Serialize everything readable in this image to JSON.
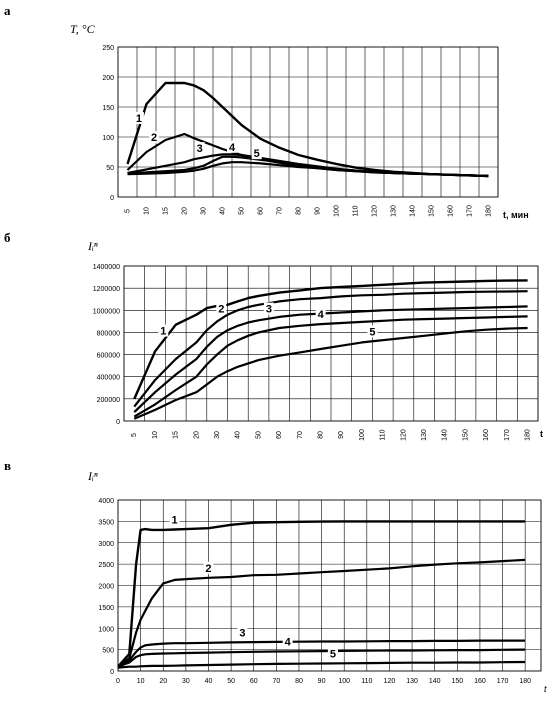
{
  "panel_letters": [
    "а",
    "б",
    "в"
  ],
  "chart_data": [
    {
      "type": "line",
      "panel": "а",
      "ylabel": "T, °C",
      "xlabel": "t, мин",
      "x": [
        5,
        10,
        15,
        20,
        25,
        30,
        35,
        40,
        45,
        50,
        60,
        70,
        80,
        90,
        100,
        110,
        120,
        130,
        140,
        150,
        160,
        170,
        180
      ],
      "xticks": [
        5,
        10,
        15,
        20,
        30,
        40,
        50,
        60,
        70,
        80,
        90,
        100,
        110,
        120,
        130,
        140,
        150,
        160,
        170,
        180
      ],
      "ylim": [
        0,
        250
      ],
      "yticks": [
        0,
        50,
        100,
        150,
        200,
        250
      ],
      "grid": true,
      "series": [
        {
          "name": "1",
          "values": [
            55,
            155,
            190,
            190,
            186,
            178,
            165,
            150,
            135,
            120,
            97,
            82,
            70,
            62,
            55,
            49,
            45,
            42,
            40,
            38,
            37,
            36,
            35
          ]
        },
        {
          "name": "2",
          "values": [
            45,
            75,
            95,
            105,
            98,
            92,
            86,
            80,
            75,
            70,
            63,
            57,
            52,
            48,
            45,
            43,
            41,
            40,
            39,
            38,
            37,
            36,
            35
          ]
        },
        {
          "name": "3",
          "values": [
            40,
            46,
            52,
            58,
            63,
            66,
            69,
            71,
            71,
            70,
            65,
            60,
            55,
            51,
            47,
            44,
            42,
            40,
            39,
            38,
            37,
            36,
            35
          ]
        },
        {
          "name": "4",
          "values": [
            39,
            41,
            43,
            45,
            48,
            52,
            60,
            67,
            67,
            66,
            62,
            58,
            54,
            50,
            47,
            44,
            42,
            40,
            39,
            38,
            37,
            36,
            35
          ]
        },
        {
          "name": "5",
          "values": [
            38,
            39,
            40,
            42,
            44,
            47,
            52,
            56,
            58,
            58,
            56,
            53,
            50,
            48,
            45,
            43,
            41,
            40,
            39,
            38,
            37,
            36,
            35
          ]
        }
      ],
      "label_positions_x": [
        8,
        12,
        28,
        45,
        58
      ]
    },
    {
      "type": "line",
      "panel": "б",
      "ylabel": "Iᵢⁿ",
      "xlabel": "t",
      "x": [
        5,
        10,
        15,
        20,
        25,
        30,
        35,
        40,
        45,
        50,
        60,
        70,
        80,
        90,
        100,
        110,
        120,
        130,
        140,
        150,
        160,
        170,
        180
      ],
      "xticks": [
        5,
        10,
        15,
        20,
        30,
        40,
        50,
        60,
        70,
        80,
        90,
        100,
        110,
        120,
        130,
        140,
        150,
        160,
        170,
        180
      ],
      "ylim": [
        0,
        1400000
      ],
      "yticks": [
        0,
        200000,
        400000,
        600000,
        800000,
        1000000,
        1200000,
        1400000
      ],
      "grid": true,
      "series": [
        {
          "name": "1",
          "values": [
            200000,
            630000,
            870000,
            960000,
            1020000,
            1040000,
            1050000,
            1080000,
            1110000,
            1130000,
            1160000,
            1180000,
            1200000,
            1210000,
            1220000,
            1230000,
            1240000,
            1250000,
            1255000,
            1260000,
            1265000,
            1268000,
            1270000
          ]
        },
        {
          "name": "2",
          "values": [
            130000,
            370000,
            560000,
            710000,
            820000,
            900000,
            960000,
            1000000,
            1030000,
            1050000,
            1080000,
            1100000,
            1110000,
            1125000,
            1135000,
            1140000,
            1150000,
            1155000,
            1160000,
            1165000,
            1168000,
            1170000,
            1172000
          ]
        },
        {
          "name": "3",
          "values": [
            80000,
            260000,
            420000,
            560000,
            670000,
            760000,
            820000,
            860000,
            890000,
            910000,
            940000,
            960000,
            970000,
            980000,
            990000,
            1000000,
            1005000,
            1010000,
            1015000,
            1020000,
            1025000,
            1030000,
            1035000
          ]
        },
        {
          "name": "4",
          "values": [
            40000,
            150000,
            280000,
            400000,
            510000,
            600000,
            680000,
            730000,
            770000,
            800000,
            840000,
            860000,
            875000,
            885000,
            895000,
            905000,
            915000,
            920000,
            925000,
            930000,
            935000,
            940000,
            945000
          ]
        },
        {
          "name": "5",
          "values": [
            20000,
            100000,
            190000,
            260000,
            330000,
            400000,
            450000,
            490000,
            520000,
            550000,
            590000,
            620000,
            650000,
            680000,
            710000,
            730000,
            750000,
            770000,
            790000,
            810000,
            825000,
            835000,
            840000
          ]
        }
      ],
      "label_positions_x": [
        12,
        32,
        55,
        80,
        105
      ]
    },
    {
      "type": "line",
      "panel": "в",
      "ylabel": "Iᵢⁿ",
      "xlabel": "t",
      "x": [
        0,
        5,
        8,
        10,
        12,
        15,
        20,
        25,
        30,
        40,
        50,
        60,
        70,
        80,
        90,
        100,
        110,
        120,
        130,
        140,
        150,
        160,
        170,
        180
      ],
      "xticks": [
        0,
        10,
        20,
        30,
        40,
        50,
        60,
        70,
        80,
        90,
        100,
        110,
        120,
        130,
        140,
        150,
        160,
        170,
        180
      ],
      "ylim": [
        0,
        4000
      ],
      "yticks": [
        0,
        500,
        1000,
        1500,
        2000,
        2500,
        3000,
        3500,
        4000
      ],
      "grid": true,
      "series": [
        {
          "name": "1",
          "values": [
            100,
            400,
            2500,
            3300,
            3320,
            3300,
            3300,
            3310,
            3320,
            3340,
            3420,
            3470,
            3480,
            3490,
            3495,
            3500,
            3500,
            3500,
            3500,
            3500,
            3500,
            3500,
            3500,
            3500
          ]
        },
        {
          "name": "2",
          "values": [
            100,
            300,
            900,
            1200,
            1400,
            1700,
            2050,
            2130,
            2150,
            2180,
            2200,
            2240,
            2250,
            2280,
            2310,
            2340,
            2370,
            2400,
            2450,
            2490,
            2520,
            2540,
            2570,
            2600
          ]
        },
        {
          "name": "3",
          "values": [
            100,
            250,
            450,
            550,
            600,
            620,
            640,
            650,
            650,
            660,
            670,
            675,
            680,
            685,
            690,
            690,
            695,
            700,
            700,
            705,
            705,
            710,
            710,
            710
          ]
        },
        {
          "name": "4",
          "values": [
            100,
            200,
            330,
            370,
            390,
            400,
            410,
            415,
            420,
            430,
            440,
            450,
            455,
            460,
            465,
            470,
            475,
            480,
            480,
            485,
            490,
            490,
            495,
            500
          ]
        },
        {
          "name": "5",
          "values": [
            80,
            100,
            100,
            110,
            115,
            120,
            120,
            125,
            130,
            140,
            150,
            160,
            165,
            170,
            175,
            180,
            185,
            190,
            195,
            195,
            200,
            200,
            205,
            210
          ]
        }
      ],
      "label_positions_x": [
        25,
        40,
        55,
        75,
        95
      ]
    }
  ]
}
